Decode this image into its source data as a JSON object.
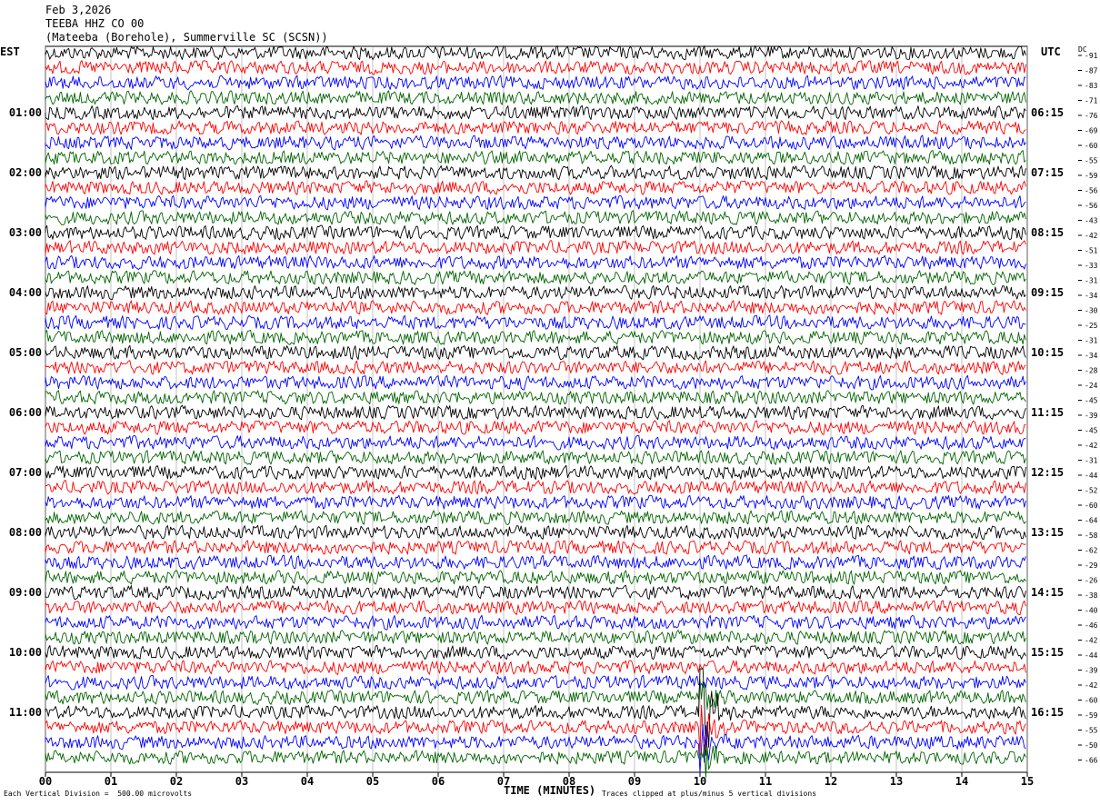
{
  "header": {
    "date": "Feb 3,2026",
    "channel": "TEEBA HHZ CO 00",
    "station": "(Mateeba (Borehole), Summerville SC (SCSN))"
  },
  "labels": {
    "left_tz": "EST",
    "right_tz": "UTC",
    "dc_title": "DC"
  },
  "footer": {
    "scale": "Each Vertical Division =  500.00 microvolts",
    "x_title": "TIME (MINUTES)",
    "clip_note": "Traces clipped at plus/minus 5 vertical divisions"
  },
  "colors": {
    "cycle": [
      "#000000",
      "#ff0000",
      "#0000ff",
      "#006400"
    ]
  },
  "chart_data": {
    "type": "line",
    "title": "Feb 3,2026  TEEBA HHZ CO 00  (Mateeba (Borehole), Summerville SC (SCSN))",
    "xlabel": "TIME (MINUTES)",
    "ylabel": "",
    "xlim": [
      0,
      15
    ],
    "x_ticks": [
      "00",
      "01",
      "02",
      "03",
      "04",
      "05",
      "06",
      "07",
      "08",
      "09",
      "10",
      "11",
      "12",
      "13",
      "14",
      "15"
    ],
    "left_hour_labels": [
      "01:00",
      "02:00",
      "03:00",
      "04:00",
      "05:00",
      "06:00",
      "07:00",
      "08:00",
      "09:00",
      "10:00",
      "11:00"
    ],
    "right_hour_labels": [
      "06:15",
      "07:15",
      "08:15",
      "09:15",
      "10:15",
      "11:15",
      "12:15",
      "13:15",
      "14:15",
      "15:15",
      "16:15"
    ],
    "trace_count": 48,
    "minutes_per_trace": 15,
    "dc_offsets": [
      -91,
      -87,
      -83,
      -71,
      -76,
      -69,
      -60,
      -55,
      -59,
      -56,
      -56,
      -43,
      -42,
      -51,
      -33,
      -31,
      -34,
      -30,
      -25,
      -31,
      -34,
      -28,
      -24,
      -45,
      -39,
      -45,
      -42,
      -31,
      -44,
      -52,
      -60,
      -64,
      -58,
      -62,
      -29,
      -26,
      -38,
      -40,
      -46,
      -42,
      -44,
      -39,
      -42,
      -60,
      -59,
      -55,
      -50,
      -66
    ],
    "event": {
      "minute": 10.0,
      "traces": [
        43,
        44,
        45,
        46,
        47
      ],
      "note": "large clipped signal"
    },
    "grid": "vertical minute lines"
  }
}
